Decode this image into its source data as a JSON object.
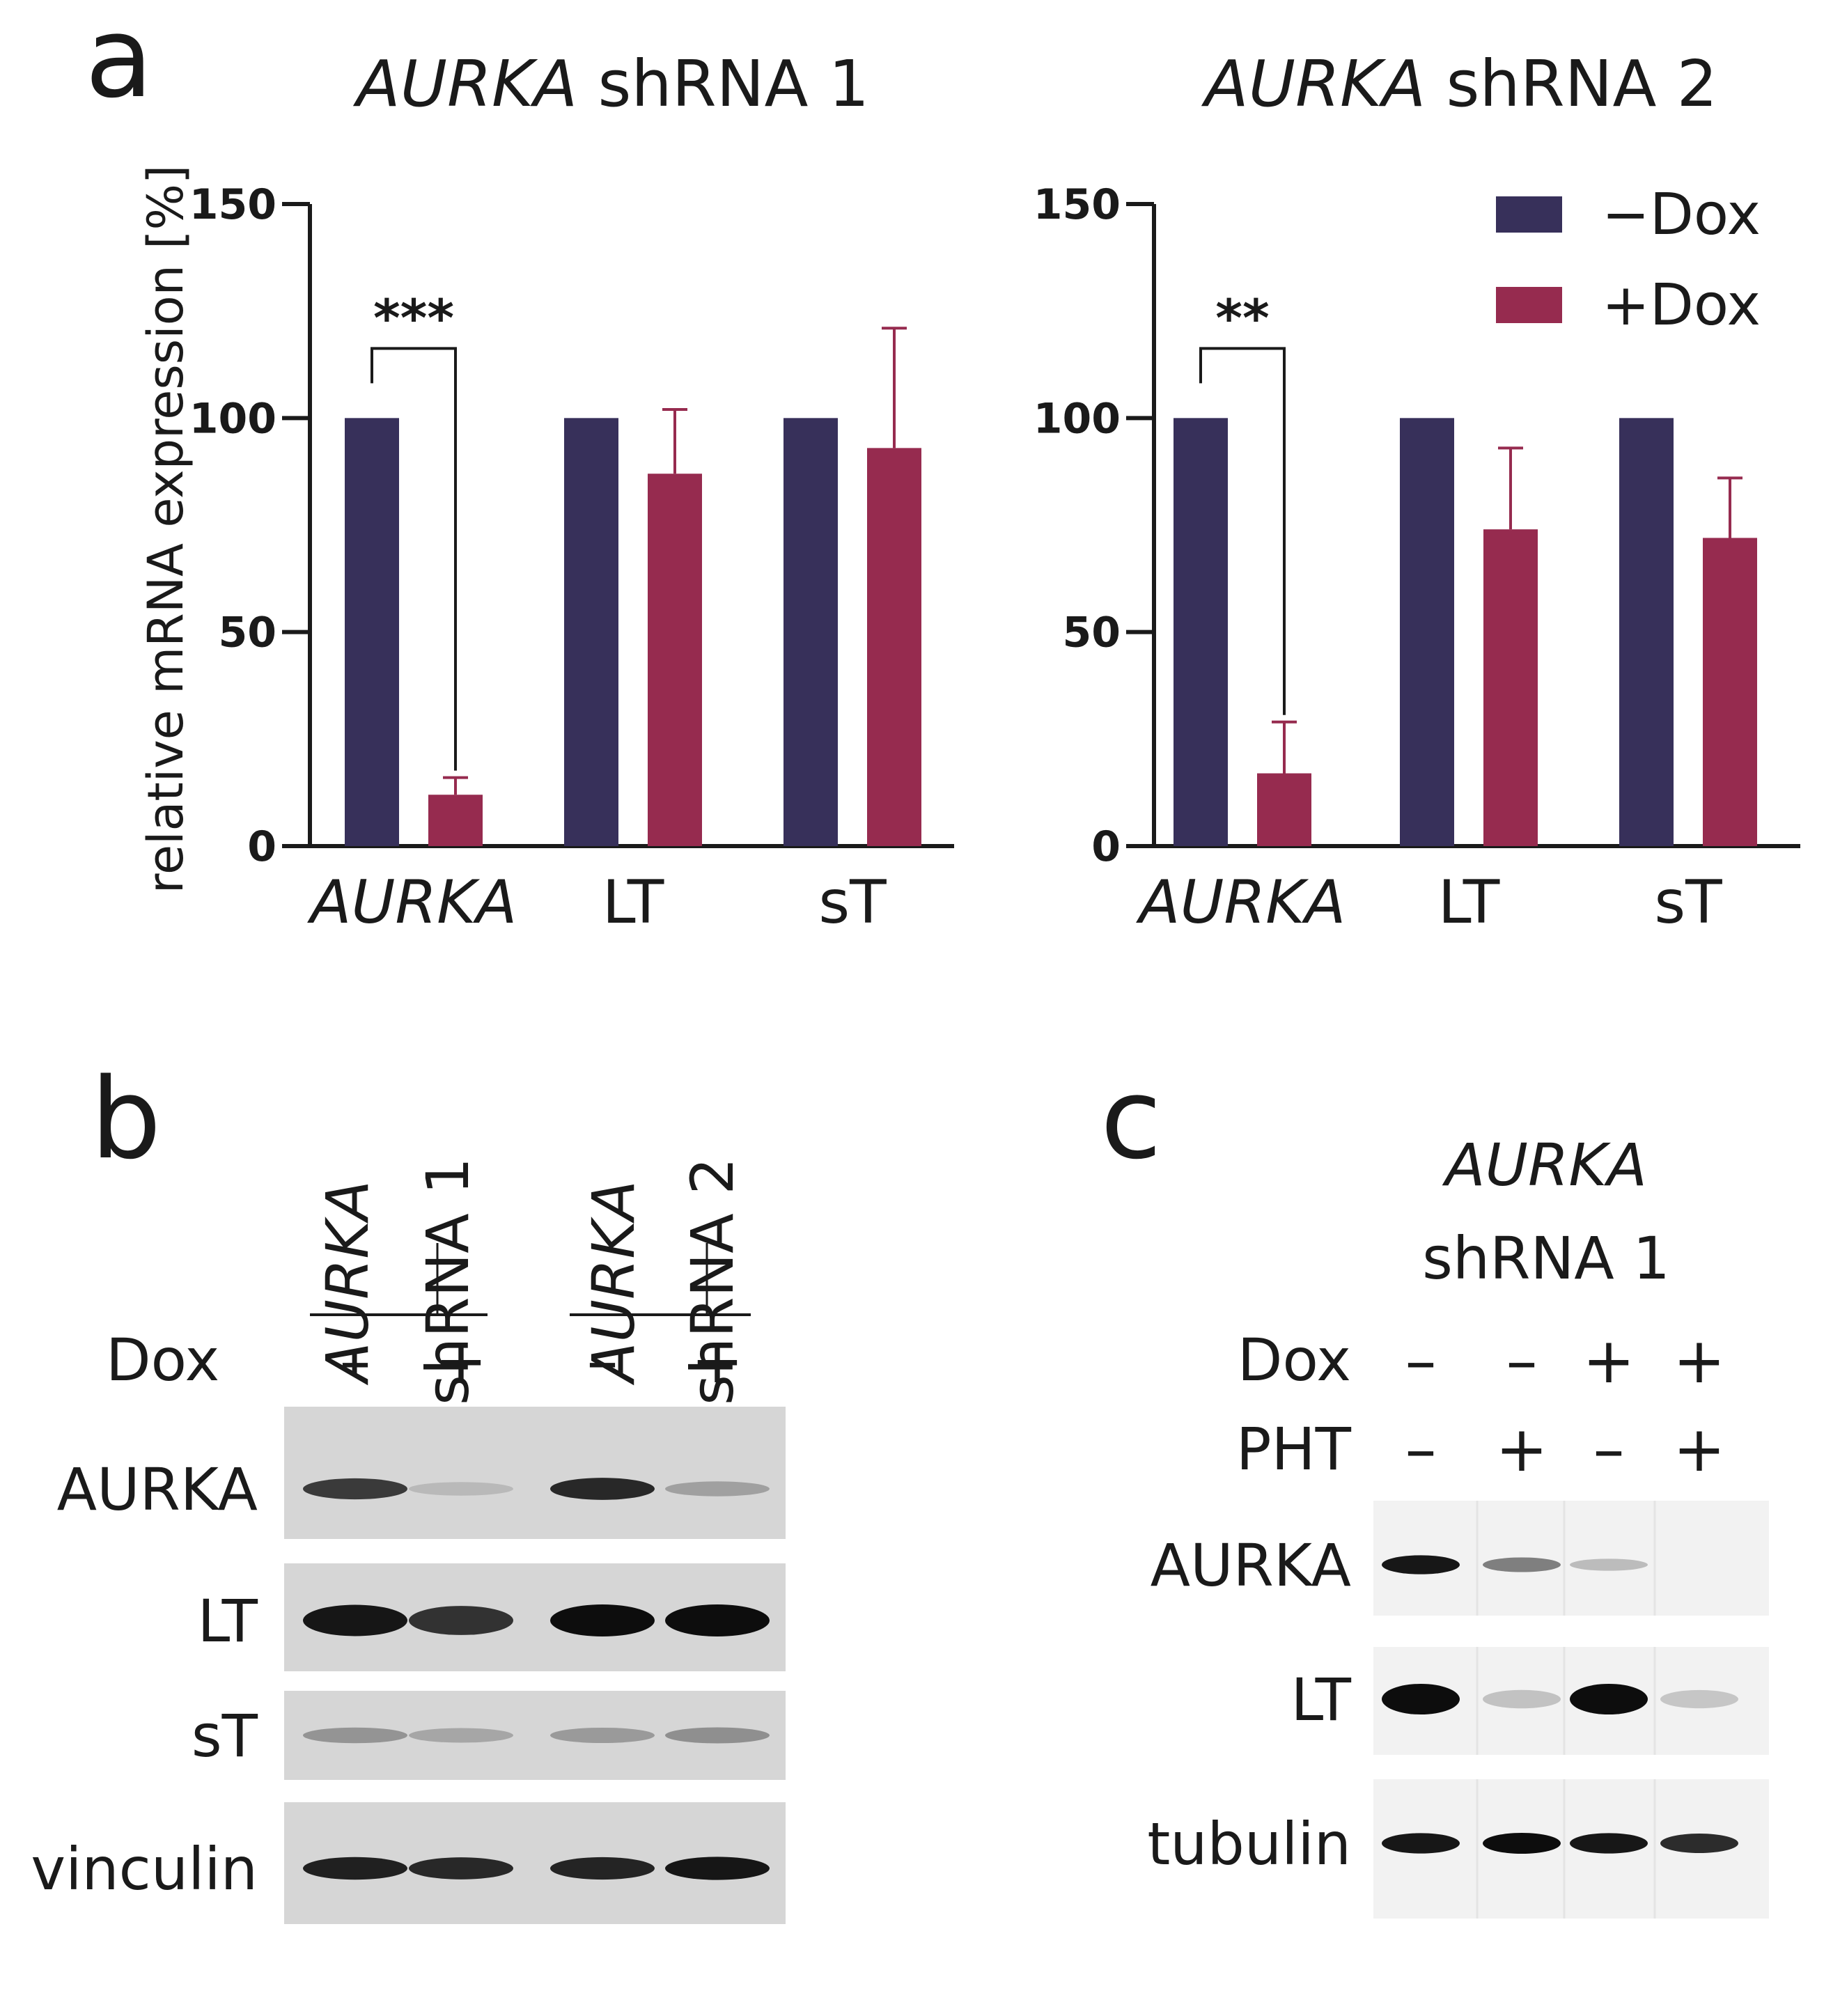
{
  "panel_labels": {
    "a": "a",
    "b": "b",
    "c": "c"
  },
  "colors": {
    "minus_dox": "#37305a",
    "plus_dox": "#962b4f"
  },
  "chart_data": [
    {
      "type": "bar",
      "title_italic": "AURKA",
      "title_rest": " shRNA 1",
      "ylabel": "relative mRNA expression [%]",
      "ylim": [
        0,
        150
      ],
      "yticks": [
        "0",
        "50",
        "100",
        "150"
      ],
      "categories": [
        "AURKA",
        "LT",
        "sT"
      ],
      "series": [
        {
          "name": "−Dox",
          "values": [
            100,
            100,
            100
          ],
          "errors": [
            0,
            0,
            0
          ]
        },
        {
          "name": "+Dox",
          "values": [
            12,
            87,
            93
          ],
          "errors": [
            4,
            15,
            28
          ]
        }
      ],
      "significance": {
        "category": "AURKA",
        "label": "***"
      }
    },
    {
      "type": "bar",
      "title_italic": "AURKA",
      "title_rest": " shRNA 2",
      "ylabel": "",
      "ylim": [
        0,
        150
      ],
      "yticks": [
        "0",
        "50",
        "100",
        "150"
      ],
      "categories": [
        "AURKA",
        "LT",
        "sT"
      ],
      "series": [
        {
          "name": "−Dox",
          "values": [
            100,
            100,
            100
          ],
          "errors": [
            0,
            0,
            0
          ]
        },
        {
          "name": "+Dox",
          "values": [
            17,
            74,
            72
          ],
          "errors": [
            12,
            19,
            14
          ]
        }
      ],
      "significance": {
        "category": "AURKA",
        "label": "**"
      },
      "legend": {
        "placement": "top-right",
        "entries": [
          "−Dox",
          "+Dox"
        ]
      }
    }
  ],
  "blot_b": {
    "header_italic": "AURKA",
    "groups": [
      "shRNA 1",
      "shRNA 2"
    ],
    "dox_label": "Dox",
    "dox_signs": [
      "–",
      "+",
      "–",
      "+"
    ],
    "rows": [
      {
        "label": "AURKA",
        "intensity": [
          0.75,
          0.05,
          0.85,
          0.18
        ]
      },
      {
        "label": "LT",
        "intensity": [
          0.95,
          0.8,
          1.0,
          1.0
        ]
      },
      {
        "label": "sT",
        "intensity": [
          0.25,
          0.15,
          0.22,
          0.28
        ]
      },
      {
        "label": "vinculin",
        "intensity": [
          0.9,
          0.85,
          0.88,
          0.95
        ]
      }
    ]
  },
  "blot_c": {
    "header_italic": "AURKA",
    "header_rest": "shRNA 1",
    "dox_label": "Dox",
    "pht_label": "PHT",
    "dox_signs": [
      "–",
      "–",
      "+",
      "+"
    ],
    "pht_signs": [
      "–",
      "+",
      "–",
      "+"
    ],
    "rows": [
      {
        "label": "AURKA",
        "intensity": [
          0.95,
          0.45,
          0.15,
          0.0
        ]
      },
      {
        "label": "LT",
        "intensity": [
          1.0,
          0.12,
          1.0,
          0.1
        ]
      },
      {
        "label": "tubulin",
        "intensity": [
          0.95,
          1.0,
          0.95,
          0.85
        ]
      }
    ]
  }
}
